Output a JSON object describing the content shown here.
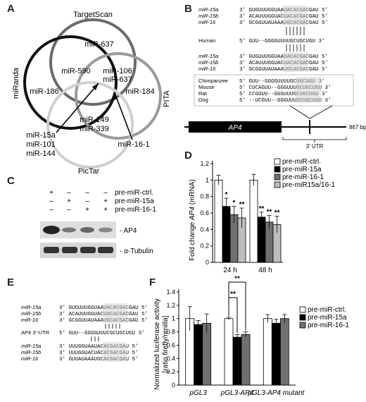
{
  "panels": {
    "A": "A",
    "B": "B",
    "C": "C",
    "D": "D",
    "E": "E",
    "F": "F"
  },
  "venn": {
    "sets": [
      "TargetScan",
      "miRanda",
      "PITA",
      "PicTar"
    ],
    "regions": {
      "targetscan_only": "miR-637",
      "miranda_only": "miR-186",
      "pita_only": "miR-184",
      "pictar_only": [
        "miR-149",
        "miR-339"
      ],
      "ts_miranda": "miR-590",
      "ts_pita": [
        "miR-106",
        "miR-637"
      ],
      "center_list": [
        "miR-15a",
        "miR-101",
        "miR-144"
      ],
      "pita_pictar": "miR-16-1"
    }
  },
  "alignment_B": {
    "names_top": [
      "miR-15a",
      "miR-15b",
      "miR-16"
    ],
    "seqs_top": [
      "3’ GUGUUUGGUAAUACACGACGAU 5’",
      "3’ ACAUUUGGUACUACACGACGAU 5’",
      "3’ GCGGUUAUAAAUGCACGACGAU 5’"
    ],
    "human_label": "Human",
    "human_seq": "5’ GUU--GGGGUUUUGCUGCUGU 3’",
    "names_mid": [
      "miR-15a",
      "miR-15b",
      "miR-16"
    ],
    "seqs_mid": [
      "3’ GUGUUUGGUAAUACACGACGAU 5’",
      "3’ ACAUUUGGUACUACACGACGAU 5’",
      "3’ GCGGUUAUAAAUGCACGACGAU 5’"
    ],
    "species": [
      "Chimpanzee",
      "Mouse",
      "Rat",
      "Dog"
    ],
    "species_seqs": [
      "5’ GUU--GGGGUUUUGCUGCUGU 3’",
      "5’ CUCAGUU--GGGUUUGCUGCUGU 3’",
      "5’ CCGGUU--GGGUUUGCUGCUGU 3’",
      "5’ --UCGUU--GGGUUUGCUGCUGU 3’"
    ],
    "gene_label": "AP4",
    "length_label": "867 bp",
    "utr_label": "3’ UTR"
  },
  "western_C": {
    "rows": [
      {
        "signs": [
          "+",
          "–",
          "–",
          "–"
        ],
        "label": "pre-miR-ctrl."
      },
      {
        "signs": [
          "–",
          "+",
          "–",
          "+"
        ],
        "label": "pre-miR-15a"
      },
      {
        "signs": [
          "–",
          "–",
          "+",
          "+"
        ],
        "label": "pre-miR-16-1"
      }
    ],
    "band_labels": [
      "- AP4",
      "- α-Tubulin"
    ]
  },
  "alignment_E": {
    "names_top": [
      "miR-15a",
      "miR-15b",
      "miR-16"
    ],
    "seqs_top": [
      "3’ GUGUUUGGUAAUACACGACGAU 5’",
      "3’ ACAUUUGGUACUACACGACGAU 5’",
      "3’ GCGGUUAUAAAUGCACGACGAU 5’"
    ],
    "utr_label": "AP4 3’-UTR",
    "utr_seq": "5’ GUU--GGGGUUUCGCUGCUGU 3’",
    "names_bot": [
      "miR-15a",
      "miR-15b",
      "miR-16"
    ],
    "seqs_bot": [
      "3’ UUUGGUAAUACACGACGAU 5’",
      "3’ UUUGGUACUACACGACGAU 5’",
      "3’ GUUAUAAAUGCACGACGAU 5’"
    ]
  },
  "chart_data": [
    {
      "type": "bar",
      "panel": "D",
      "categories": [
        "24 h",
        "48 h"
      ],
      "series": [
        {
          "name": "pre-miR-ctrl.",
          "values": [
            1.0,
            1.0
          ],
          "errors": [
            0.06,
            0.07
          ],
          "sig": [
            "",
            ""
          ],
          "color": "#ffffff"
        },
        {
          "name": "pre-miR-15a",
          "values": [
            0.68,
            0.55
          ],
          "errors": [
            0.1,
            0.06
          ],
          "sig": [
            "*",
            "**"
          ],
          "color": "#000000"
        },
        {
          "name": "pre-miR-16-1",
          "values": [
            0.58,
            0.49
          ],
          "errors": [
            0.1,
            0.08
          ],
          "sig": [
            "*",
            "**"
          ],
          "color": "#707070"
        },
        {
          "name": "pre-miR15a/16-1",
          "values": [
            0.54,
            0.46
          ],
          "errors": [
            0.12,
            0.1
          ],
          "sig": [
            "**",
            "**"
          ],
          "color": "#bdbdbd"
        }
      ],
      "ylabel_prefix": "Fold change ",
      "ylabel_gene": "AP4",
      "ylabel_suffix": " (mRNA)",
      "ylim": [
        0,
        1.2
      ],
      "yticks": [
        "0",
        "0.2",
        "0.4",
        "0.6",
        "0.8",
        "1",
        "1.2"
      ],
      "legend": "top-right"
    },
    {
      "type": "bar",
      "panel": "F",
      "categories": [
        "pGL3",
        "pGL3-AP4",
        "pGL3-AP4 mutant"
      ],
      "series": [
        {
          "name": "pre-miR-ctrl.",
          "values": [
            1.0,
            1.0,
            1.0
          ],
          "errors": [
            0.18,
            0.02,
            0.06
          ],
          "color": "#ffffff"
        },
        {
          "name": "pre-miR-15a",
          "values": [
            0.91,
            0.72,
            0.93
          ],
          "errors": [
            0.06,
            0.04,
            0.06
          ],
          "color": "#000000"
        },
        {
          "name": "pre-miR-16-1",
          "values": [
            0.93,
            0.76,
            1.0
          ],
          "errors": [
            0.14,
            0.04,
            0.06
          ],
          "color": "#707070"
        }
      ],
      "brackets": [
        {
          "from_series": 0,
          "to_series": 1,
          "category": 1,
          "label": "**"
        },
        {
          "from_series": 0,
          "to_series": 2,
          "category": 1,
          "label": "**"
        }
      ],
      "ylabel_line1": "Normalized luciferase activity",
      "ylabel_line2": "[ratio firefly/renilla]",
      "ylim": [
        0,
        1.4
      ],
      "yticks": [
        "0",
        "0.2",
        "0.4",
        "0.6",
        "0.8",
        "1",
        "1.2",
        "1.4"
      ],
      "legend": "right"
    }
  ]
}
